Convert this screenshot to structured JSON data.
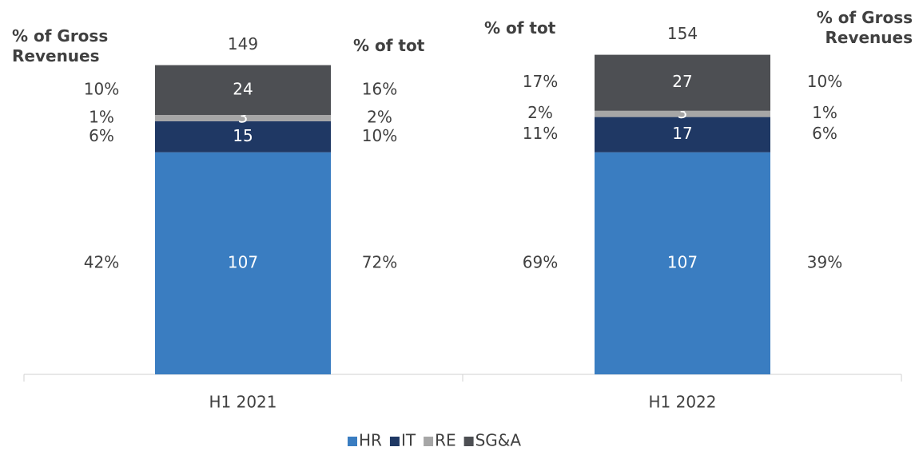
{
  "chart_data": {
    "type": "bar",
    "stacked": true,
    "categories": [
      "H1 2021",
      "H1 2022"
    ],
    "series": [
      {
        "name": "HR",
        "color": "#3a7dc1",
        "values": [
          107,
          107
        ]
      },
      {
        "name": "IT",
        "color": "#1f3864",
        "values": [
          15,
          17
        ]
      },
      {
        "name": "RE",
        "color": "#a6a6a6",
        "values": [
          3,
          3
        ]
      },
      {
        "name": "SG&A",
        "color": "#4d4f53",
        "values": [
          24,
          27
        ]
      }
    ],
    "totals": [
      149,
      154
    ],
    "pct_columns": [
      {
        "title": "% of Gross Revenues",
        "values": [
          42,
          6,
          1,
          10
        ],
        "value_labels": [
          "42%",
          "6%",
          "1%",
          "10%"
        ]
      },
      {
        "title": "% of tot",
        "values": [
          72,
          10,
          2,
          16
        ],
        "value_labels": [
          "72%",
          "10%",
          "2%",
          "16%"
        ]
      },
      {
        "title": "% of tot",
        "values": [
          69,
          11,
          2,
          17
        ],
        "value_labels": [
          "69%",
          "11%",
          "2%",
          "17%"
        ]
      },
      {
        "title": "% of Gross Revenues",
        "values": [
          39,
          6,
          1,
          10
        ],
        "value_labels": [
          "39%",
          "6%",
          "1%",
          "10%"
        ]
      }
    ],
    "legend": "bottom"
  }
}
